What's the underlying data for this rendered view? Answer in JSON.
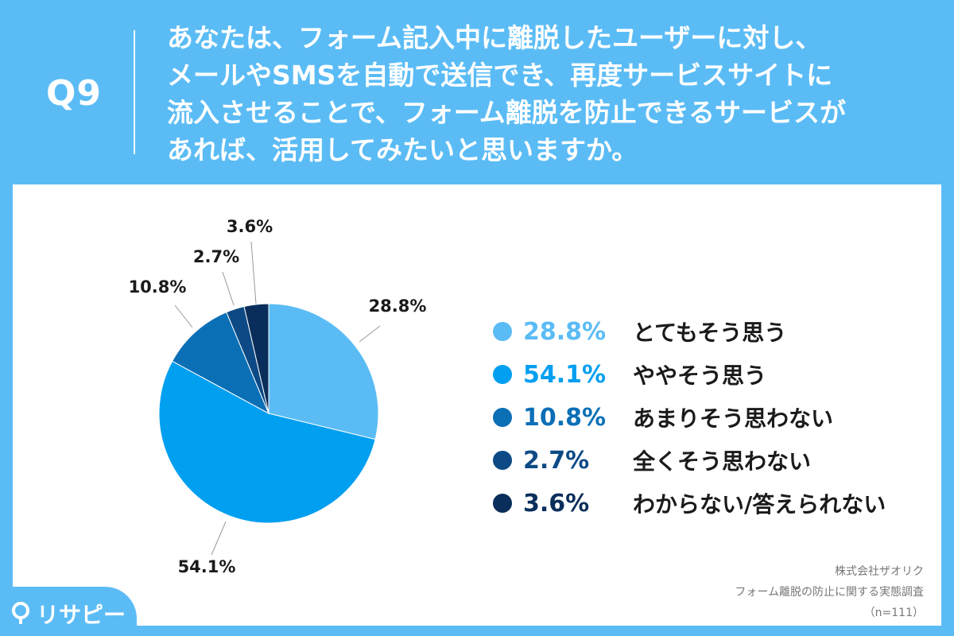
{
  "header": {
    "question_number": "Q9",
    "question_lines": [
      "あなたは、フォーム記入中に離脱したユーザーに対し、",
      "メールやSMSを自動で送信でき、再度サービスサイトに",
      "流入させることで、フォーム離脱を防止できるサービスが",
      "あれば、活用してみたいと思いますか。"
    ]
  },
  "chart_data": {
    "type": "pie",
    "slices": [
      {
        "label": "とてもそう思う",
        "value": 28.8,
        "display": "28.8%",
        "color": "#5bbcf5"
      },
      {
        "label": "ややそう思う",
        "value": 54.1,
        "display": "54.1%",
        "color": "#009ff0"
      },
      {
        "label": "あまりそう思わない",
        "value": 10.8,
        "display": "10.8%",
        "color": "#0b6fb6"
      },
      {
        "label": "全くそう思わない",
        "value": 2.7,
        "display": "2.7%",
        "color": "#0d4a85"
      },
      {
        "label": "わからない/答えられない",
        "value": 3.6,
        "display": "3.6%",
        "color": "#0a2e5b"
      }
    ],
    "legend_placement": "right"
  },
  "credit": {
    "company": "株式会社ザオリク",
    "survey": "フォーム離脱の防止に関する実態調査",
    "sample": "（n=111）"
  },
  "logo": {
    "text": "リサピー"
  }
}
